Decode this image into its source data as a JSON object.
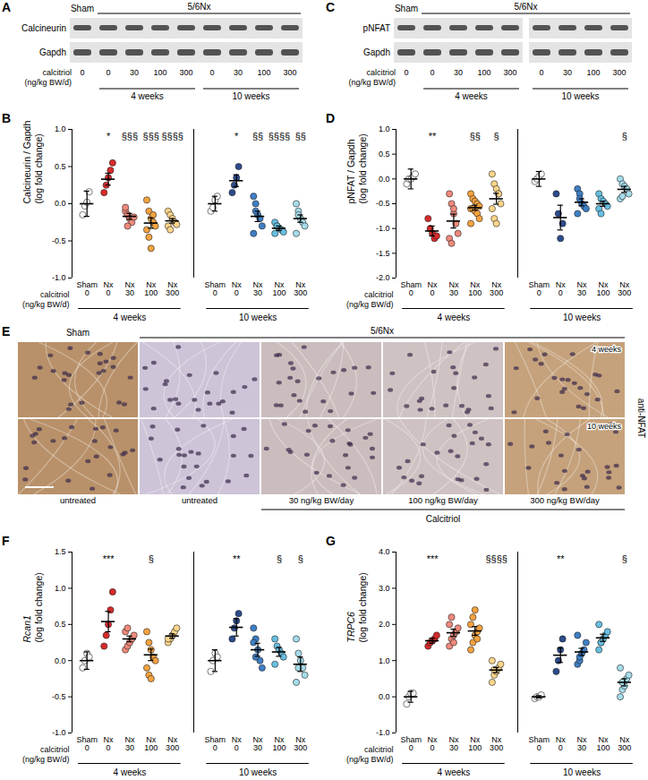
{
  "chart_data": [
    {
      "type": "scatter",
      "letter": "B",
      "ylabel": [
        "Calcineurin / Gapdh",
        "(log fold change)"
      ],
      "ylim": [
        -1,
        1
      ],
      "yticks": [
        {
          "value": -1,
          "label": "-1.0"
        },
        -0.5,
        {
          "value": 0,
          "label": "0.0"
        },
        0.5,
        {
          "value": 1,
          "label": "1.0"
        }
      ],
      "xlabel": [
        "calcitriol",
        "(ng/kg BW/d)"
      ],
      "groups": [
        {
          "name": "4 weeks",
          "categories": [
            "Sham",
            "Nx",
            "Nx",
            "Nx",
            "Nx"
          ],
          "doses": [
            0,
            0,
            30,
            100,
            300
          ],
          "colors": [
            "#ffffff",
            "#d62b2b",
            "#ef8a7c",
            "#f4a340",
            "#fcd58a"
          ],
          "points": [
            [
              -0.15,
              -0.03,
              0.02,
              0.16
            ],
            [
              0.15,
              0.25,
              0.35,
              0.45,
              0.55
            ],
            [
              -0.1,
              -0.15,
              -0.2,
              -0.25,
              -0.18,
              -0.05,
              -0.3
            ],
            [
              0.05,
              -0.1,
              -0.2,
              -0.25,
              -0.3,
              -0.35,
              -0.45,
              -0.6,
              -0.15
            ],
            [
              -0.1,
              -0.15,
              -0.2,
              -0.25,
              -0.28,
              -0.3,
              -0.35
            ]
          ],
          "mean": [
            0,
            0.33,
            -0.17,
            -0.26,
            -0.23
          ],
          "sem": [
            0.17,
            0.08,
            0.04,
            0.07,
            0.03
          ],
          "significance": [
            null,
            "*",
            "§§§",
            "§§§",
            "§§§§"
          ]
        },
        {
          "name": "10 weeks",
          "categories": [
            "Sham",
            "Nx",
            "Nx",
            "Nx",
            "Nx"
          ],
          "doses": [
            0,
            0,
            30,
            100,
            300
          ],
          "colors": [
            "#ffffff",
            "#2b4c8c",
            "#3f7fc4",
            "#67bfe0",
            "#a6dcea"
          ],
          "points": [
            [
              -0.1,
              -0.05,
              0.05,
              0.1
            ],
            [
              0.15,
              0.25,
              0.35,
              0.5
            ],
            [
              0.1,
              0.0,
              -0.15,
              -0.2,
              -0.3,
              -0.4,
              -0.1
            ],
            [
              -0.25,
              -0.3,
              -0.33,
              -0.35,
              -0.38,
              -0.4,
              -0.3
            ],
            [
              0.0,
              -0.1,
              -0.2,
              -0.25,
              -0.3,
              -0.4,
              -0.15
            ]
          ],
          "mean": [
            0,
            0.31,
            -0.17,
            -0.33,
            -0.2
          ],
          "sem": [
            0.1,
            0.08,
            0.07,
            0.03,
            0.05
          ],
          "significance": [
            null,
            "*",
            "§§",
            "§§§§",
            "§§"
          ]
        }
      ]
    },
    {
      "type": "scatter",
      "letter": "D",
      "ylabel": [
        "pNFAT / Gapdh",
        "(log fold change)"
      ],
      "ylim": [
        -2,
        1
      ],
      "yticks": [
        {
          "value": -2,
          "label": "-2.0"
        },
        -1.5,
        {
          "value": -1,
          "label": "-1.0"
        },
        -0.5,
        {
          "value": 0,
          "label": "0.0"
        },
        0.5,
        {
          "value": 1,
          "label": "1.0"
        }
      ],
      "xlabel": [
        "calcitriol",
        "(ng/kg BW/d)"
      ],
      "groups": [
        {
          "name": "4 weeks",
          "categories": [
            "Sham",
            "Nx",
            "Nx",
            "Nx",
            "Nx"
          ],
          "doses": [
            0,
            0,
            30,
            100,
            300
          ],
          "colors": [
            "#ffffff",
            "#d62b2b",
            "#ef8a7c",
            "#f4a340",
            "#fcd58a"
          ],
          "points": [
            [
              -0.1,
              0,
              0,
              0.05,
              0.1
            ],
            [
              -0.8,
              -1.0,
              -1.1,
              -1.2,
              -1.15
            ],
            [
              -0.3,
              -0.5,
              -0.7,
              -0.9,
              -1.1,
              -1.2,
              -1.3,
              -0.6
            ],
            [
              -0.3,
              -0.4,
              -0.45,
              -0.5,
              -0.55,
              -0.6,
              -0.6,
              -0.65,
              -0.7,
              -0.8,
              -0.9
            ],
            [
              0.1,
              -0.1,
              -0.2,
              -0.3,
              -0.5,
              -0.6,
              -0.8,
              -0.9,
              -0.3
            ]
          ],
          "mean": [
            0,
            -1.05,
            -0.85,
            -0.58,
            -0.4
          ],
          "sem": [
            0.2,
            0.1,
            0.14,
            0.05,
            0.11
          ],
          "significance": [
            null,
            "**",
            null,
            "§§",
            "§"
          ]
        },
        {
          "name": "10 weeks",
          "categories": [
            "Sham",
            "Nx",
            "Nx",
            "Nx",
            "Nx"
          ],
          "doses": [
            0,
            0,
            30,
            100,
            300
          ],
          "colors": [
            "#ffffff",
            "#2b4c8c",
            "#3f7fc4",
            "#67bfe0",
            "#a6dcea"
          ],
          "points": [
            [
              -0.05,
              0,
              0.05,
              0.1
            ],
            [
              -0.3,
              -0.7,
              -1.2,
              -0.9
            ],
            [
              -0.2,
              -0.3,
              -0.5,
              -0.55,
              -0.6,
              -0.7,
              -0.4
            ],
            [
              -0.3,
              -0.4,
              -0.45,
              -0.5,
              -0.55,
              -0.6,
              -0.7
            ],
            [
              0.0,
              -0.1,
              -0.15,
              -0.2,
              -0.3,
              -0.4,
              -0.35
            ]
          ],
          "mean": [
            0,
            -0.78,
            -0.47,
            -0.5,
            -0.21
          ],
          "sem": [
            0.15,
            0.25,
            0.07,
            0.05,
            0.06
          ],
          "significance": [
            null,
            null,
            null,
            null,
            "§"
          ]
        }
      ]
    },
    {
      "type": "scatter",
      "letter": "F",
      "ylabel": [
        "Rcan1",
        "(log fold change)"
      ],
      "ylim": [
        -1,
        1.5
      ],
      "yticks": [
        {
          "value": -1,
          "label": "-1.0"
        },
        -0.5,
        {
          "value": 0,
          "label": "0.0"
        },
        0.5,
        {
          "value": 1,
          "label": "1.0"
        },
        1.5
      ],
      "xlabel": [
        "calcitriol",
        "(ng/kg BW/d)"
      ],
      "groups": [
        {
          "name": "4 weeks",
          "categories": [
            "Sham",
            "Nx",
            "Nx",
            "Nx",
            "Nx"
          ],
          "doses": [
            0,
            0,
            30,
            100,
            300
          ],
          "colors": [
            "#ffffff",
            "#d62b2b",
            "#ef8a7c",
            "#f4a340",
            "#fcd58a"
          ],
          "points": [
            [
              -0.1,
              0,
              0.1,
              0.05
            ],
            [
              0.2,
              0.35,
              0.5,
              0.7,
              0.95
            ],
            [
              0.15,
              0.2,
              0.25,
              0.3,
              0.35,
              0.4,
              0.45
            ],
            [
              0.4,
              0.25,
              0.15,
              0.05,
              0.0,
              -0.1,
              -0.2,
              -0.25
            ],
            [
              0.25,
              0.3,
              0.35,
              0.4,
              0.45,
              0.3
            ]
          ],
          "mean": [
            0,
            0.54,
            0.3,
            0.08,
            0.34
          ],
          "sem": [
            0.12,
            0.14,
            0.04,
            0.08,
            0.03
          ],
          "significance": [
            null,
            "***",
            null,
            "§",
            null
          ]
        },
        {
          "name": "10 weeks",
          "categories": [
            "Sham",
            "Nx",
            "Nx",
            "Nx",
            "Nx"
          ],
          "doses": [
            0,
            0,
            30,
            100,
            300
          ],
          "colors": [
            "#ffffff",
            "#2b4c8c",
            "#3f7fc4",
            "#67bfe0",
            "#a6dcea"
          ],
          "points": [
            [
              -0.15,
              0,
              0.1,
              0.05
            ],
            [
              0.3,
              0.45,
              0.55,
              0.65
            ],
            [
              0.45,
              0.3,
              0.15,
              0.0,
              -0.1,
              0.25,
              0.05
            ],
            [
              0.3,
              0.2,
              0.15,
              0.1,
              0.05,
              -0.05
            ],
            [
              0.3,
              0.1,
              0.0,
              -0.1,
              -0.2,
              -0.3,
              -0.1
            ]
          ],
          "mean": [
            0,
            0.46,
            0.15,
            0.12,
            -0.05
          ],
          "sem": [
            0.15,
            0.12,
            0.09,
            0.06,
            0.1
          ],
          "significance": [
            null,
            "**",
            null,
            "§",
            "§"
          ]
        }
      ]
    },
    {
      "type": "scatter",
      "letter": "G",
      "ylabel": [
        "TRPC6",
        "(log fold change)"
      ],
      "ylim": [
        -1,
        4
      ],
      "yticks": [
        {
          "value": -1,
          "label": "-1.0"
        },
        {
          "value": 0,
          "label": "0.0"
        },
        {
          "value": 1,
          "label": "1.0"
        },
        {
          "value": 2,
          "label": "2.0"
        },
        {
          "value": 3,
          "label": "3.0"
        },
        {
          "value": 4,
          "label": "4.0"
        }
      ],
      "xlabel": [
        "calcitriol",
        "(ng/kg BW/d)"
      ],
      "groups": [
        {
          "name": "4 weeks",
          "categories": [
            "Sham",
            "Nx",
            "Nx",
            "Nx",
            "Nx"
          ],
          "doses": [
            0,
            0,
            30,
            100,
            300
          ],
          "colors": [
            "#ffffff",
            "#d62b2b",
            "#ef8a7c",
            "#f4a340",
            "#fcd58a"
          ],
          "points": [
            [
              -0.2,
              0,
              0.1,
              0.1
            ],
            [
              1.4,
              1.5,
              1.55,
              1.6,
              1.7
            ],
            [
              1.4,
              1.6,
              1.7,
              1.8,
              1.9,
              2.0,
              2.2,
              1.5
            ],
            [
              1.3,
              1.5,
              1.7,
              1.8,
              1.9,
              2.0,
              2.2,
              2.4,
              1.6
            ],
            [
              0.4,
              0.6,
              0.7,
              0.8,
              0.9,
              1.0,
              0.75
            ]
          ],
          "mean": [
            0,
            1.55,
            1.77,
            1.82,
            0.74
          ],
          "sem": [
            0.15,
            0.07,
            0.1,
            0.12,
            0.07
          ],
          "significance": [
            null,
            "***",
            null,
            null,
            "§§§§"
          ]
        },
        {
          "name": "10 weeks",
          "categories": [
            "Sham",
            "Nx",
            "Nx",
            "Nx",
            "Nx"
          ],
          "doses": [
            0,
            0,
            30,
            100,
            300
          ],
          "colors": [
            "#ffffff",
            "#2b4c8c",
            "#3f7fc4",
            "#67bfe0",
            "#a6dcea"
          ],
          "points": [
            [
              -0.05,
              0,
              0,
              0.05
            ],
            [
              0.7,
              1.0,
              1.3,
              1.6
            ],
            [
              0.9,
              1.0,
              1.2,
              1.3,
              1.5,
              1.7,
              1.1
            ],
            [
              1.3,
              1.5,
              1.6,
              1.7,
              1.8,
              2.0,
              1.5
            ],
            [
              0.0,
              0.2,
              0.3,
              0.5,
              0.6,
              0.8,
              0.4
            ]
          ],
          "mean": [
            0,
            1.15,
            1.24,
            1.63,
            0.4
          ],
          "sem": [
            0.03,
            0.2,
            0.1,
            0.1,
            0.1
          ],
          "significance": [
            null,
            "**",
            null,
            null,
            "§"
          ]
        }
      ]
    }
  ],
  "blots": [
    {
      "letter": "A",
      "top_labels": [
        "Sham",
        "5/6Nx"
      ],
      "rows": [
        "Calcineurin",
        "Gapdh"
      ],
      "xlabel": [
        "calcitriol",
        "(ng/kg BW/d)"
      ],
      "doses": [
        0,
        0,
        30,
        100,
        300,
        0,
        30,
        100,
        300
      ],
      "groups": [
        "4 weeks",
        "10 weeks"
      ]
    },
    {
      "letter": "C",
      "top_labels": [
        "Sham",
        "5/6Nx"
      ],
      "rows": [
        "pNFAT",
        "Gapdh"
      ],
      "xlabel": [
        "calcitriol",
        "(ng/kg BW/d)"
      ],
      "doses": [
        0,
        0,
        30,
        100,
        300,
        0,
        30,
        100,
        300
      ],
      "groups": [
        "4 weeks",
        "10 weeks"
      ]
    }
  ],
  "histology": {
    "letter": "E",
    "top_labels": [
      "Sham",
      "5/6Nx"
    ],
    "row_labels": [
      "4 weeks",
      "10 weeks"
    ],
    "stain": "anti-NFAT",
    "column_labels": [
      "untreated",
      "untreated",
      "30 ng/kg BW/day",
      "100 ng/kg BW/day",
      "300 ng/kg BW/day"
    ],
    "group_label": "Calcitriol"
  }
}
